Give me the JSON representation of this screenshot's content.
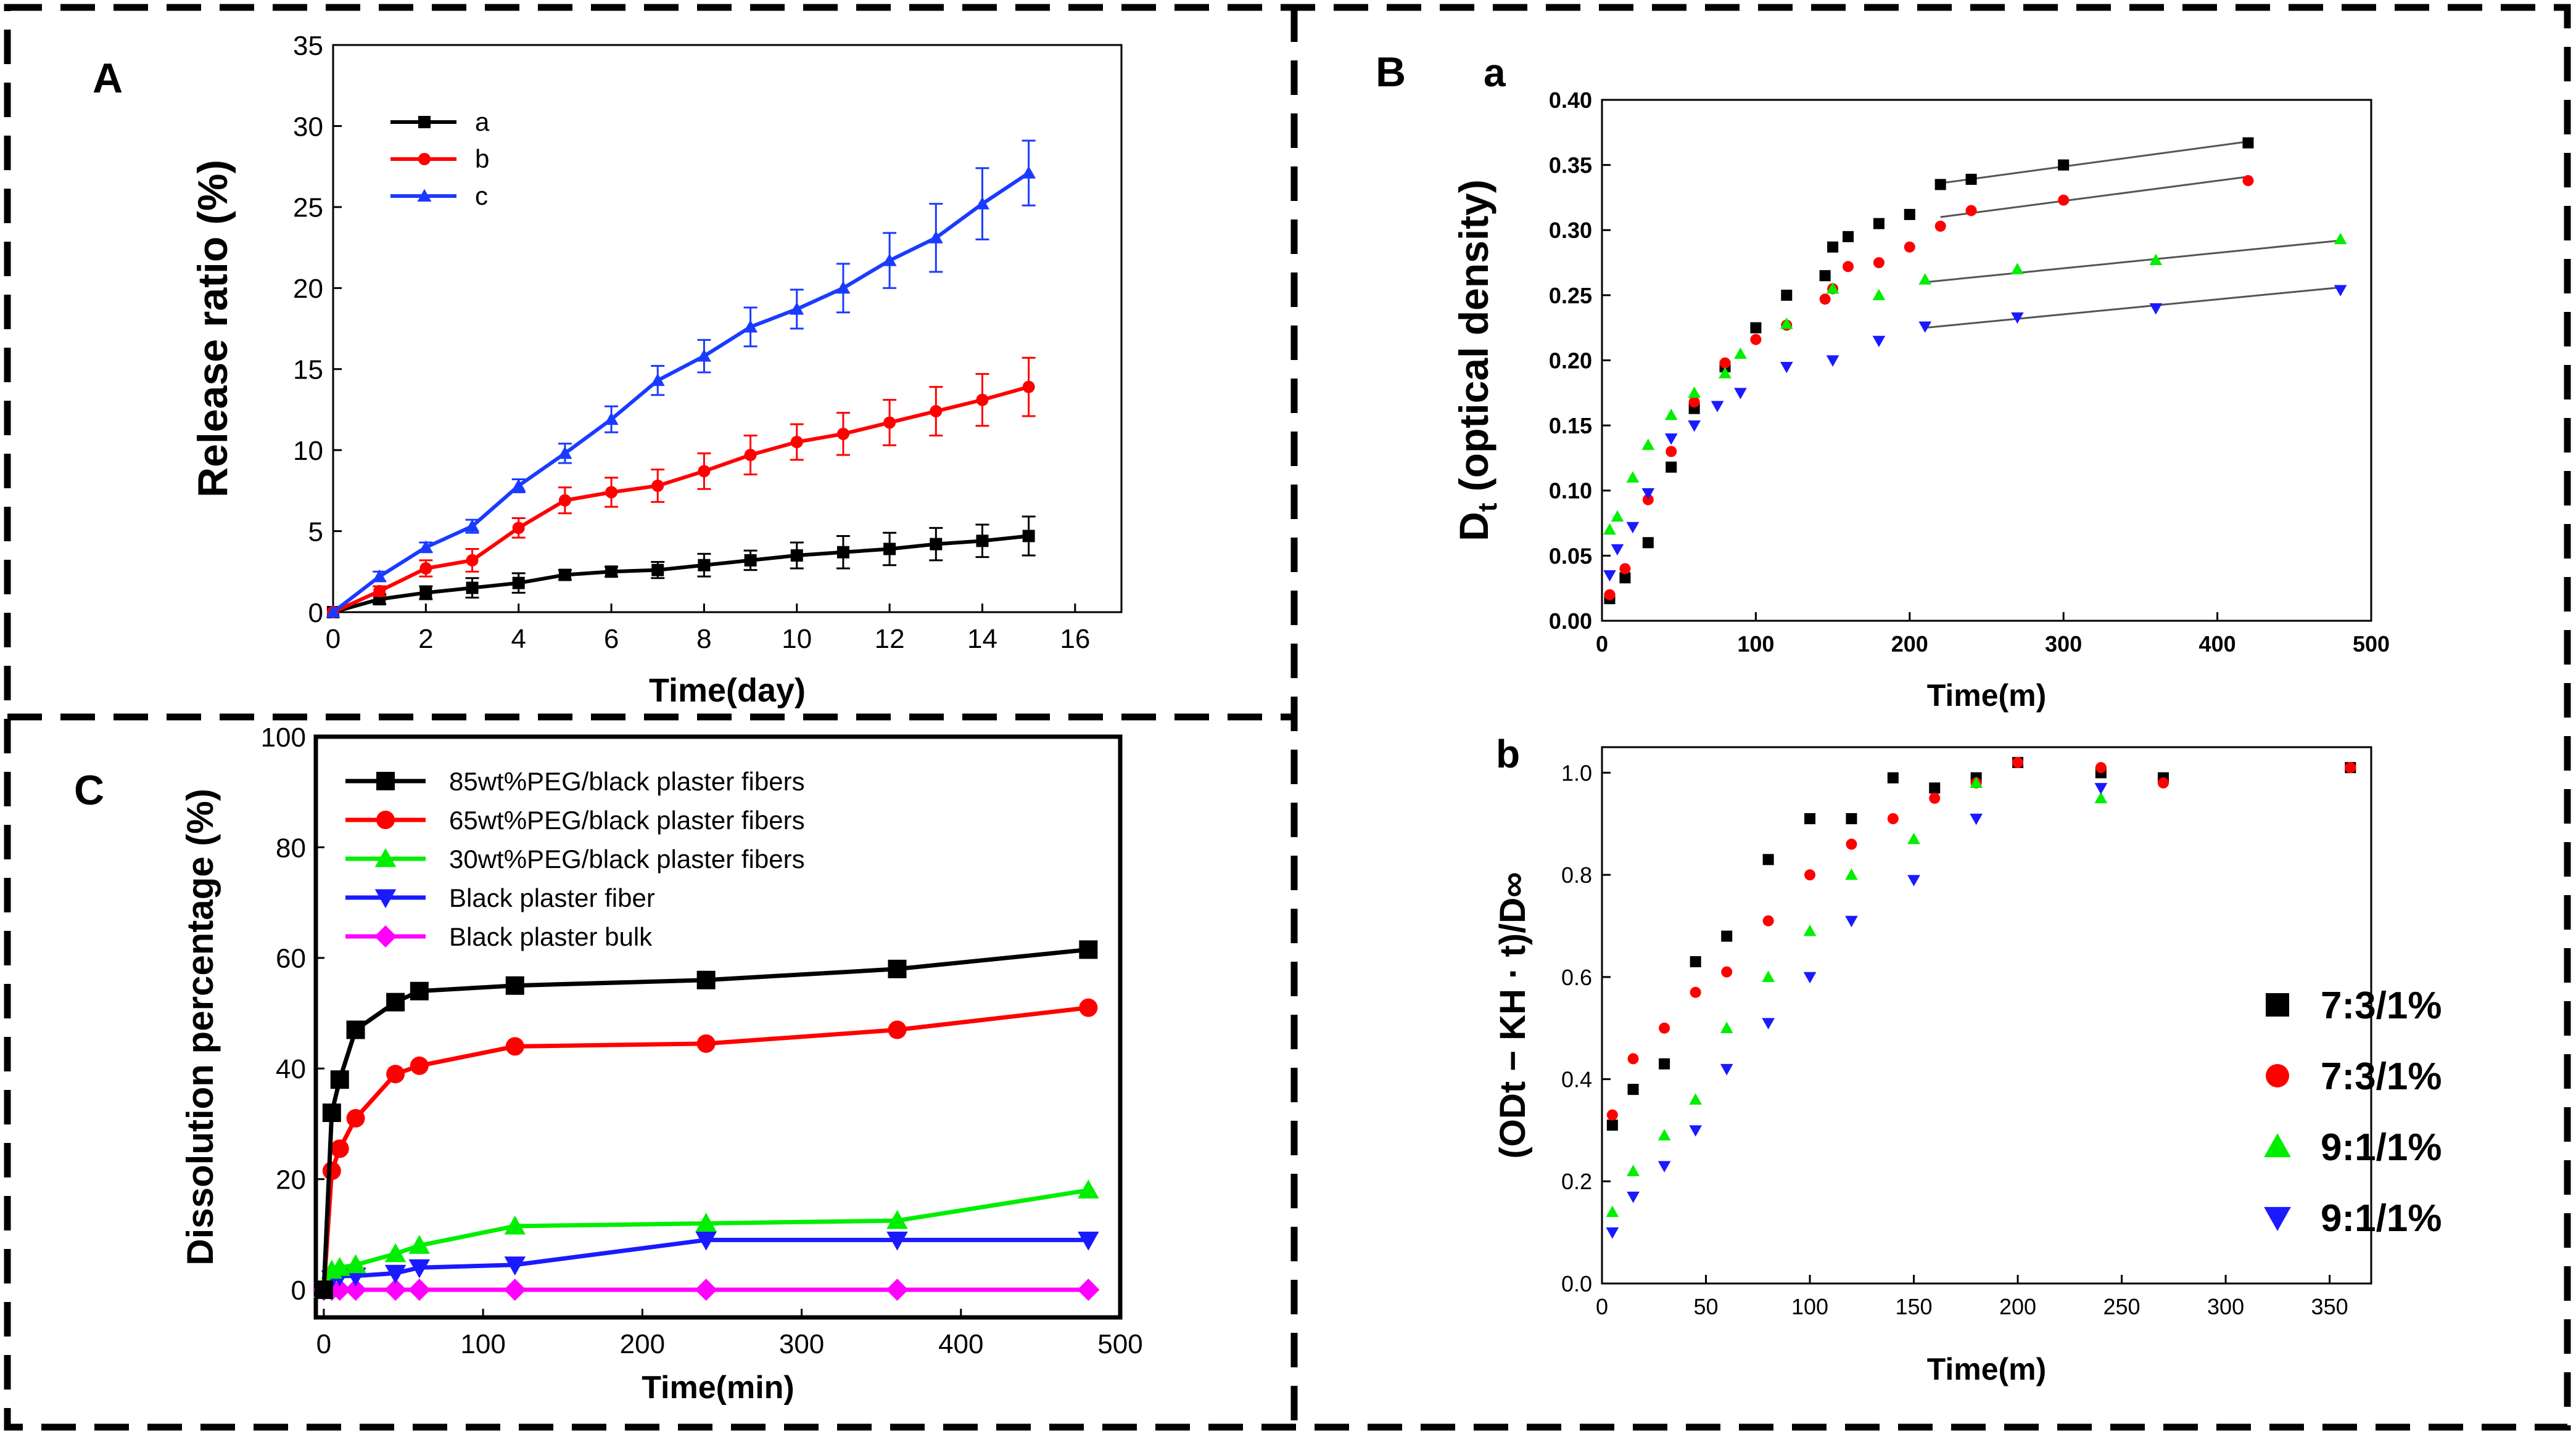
{
  "panels": {
    "A": "A",
    "B": "B",
    "C": "C",
    "Ba": "a",
    "Bb": "b"
  },
  "chart_data": [
    {
      "id": "A",
      "type": "line",
      "xlabel": "Time(day)",
      "ylabel": "Release ratio (%)",
      "xlim": [
        0,
        17
      ],
      "ylim": [
        0,
        35
      ],
      "xticks": [
        0,
        2,
        4,
        6,
        8,
        10,
        12,
        14,
        16
      ],
      "yticks": [
        0,
        5,
        10,
        15,
        20,
        25,
        30,
        35
      ],
      "legend": "top-left",
      "x": [
        0,
        1,
        2,
        3,
        4,
        5,
        6,
        7,
        8,
        9,
        10,
        11,
        12,
        13,
        14,
        15
      ],
      "series": [
        {
          "name": "a",
          "color": "#000000",
          "marker": "square",
          "values": [
            0,
            0.8,
            1.2,
            1.5,
            1.8,
            2.3,
            2.5,
            2.6,
            2.9,
            3.2,
            3.5,
            3.7,
            3.9,
            4.2,
            4.4,
            4.7
          ],
          "errors": [
            0,
            0.3,
            0.4,
            0.6,
            0.6,
            0.3,
            0.3,
            0.5,
            0.7,
            0.6,
            0.8,
            1.0,
            1.0,
            1.0,
            1.0,
            1.2
          ]
        },
        {
          "name": "b",
          "color": "#ff0000",
          "marker": "circle",
          "values": [
            0,
            1.3,
            2.7,
            3.2,
            5.2,
            6.9,
            7.4,
            7.8,
            8.7,
            9.7,
            10.5,
            11.0,
            11.7,
            12.4,
            13.1,
            13.9
          ],
          "errors": [
            0,
            0.3,
            0.5,
            0.7,
            0.6,
            0.8,
            0.9,
            1.0,
            1.1,
            1.2,
            1.1,
            1.3,
            1.4,
            1.5,
            1.6,
            1.8
          ]
        },
        {
          "name": "c",
          "color": "#1a3bff",
          "marker": "triangle-up",
          "values": [
            0,
            2.2,
            4.0,
            5.3,
            7.8,
            9.8,
            11.9,
            14.3,
            15.8,
            17.6,
            18.7,
            20.0,
            21.7,
            23.1,
            25.2,
            27.1
          ],
          "errors": [
            0,
            0.3,
            0.3,
            0.4,
            0.4,
            0.6,
            0.8,
            0.9,
            1.0,
            1.2,
            1.2,
            1.5,
            1.7,
            2.1,
            2.2,
            2.0
          ]
        }
      ]
    },
    {
      "id": "Ba",
      "type": "scatter",
      "xlabel": "Time(m)",
      "ylabel": "Dt (optical density)",
      "ylabel_main": "D",
      "ylabel_sub": "t",
      "ylabel_rest": " (optical density)",
      "xlim": [
        0,
        500
      ],
      "ylim": [
        0,
        0.4
      ],
      "xticks": [
        0,
        100,
        200,
        300,
        400,
        500
      ],
      "yticks": [
        "0.00",
        "0.05",
        "0.10",
        "0.15",
        "0.20",
        "0.25",
        "0.30",
        "0.35",
        "0.40"
      ],
      "series": [
        {
          "name": "7:3/1%",
          "color": "#000000",
          "marker": "square",
          "x": [
            5,
            15,
            30,
            45,
            60,
            80,
            100,
            120,
            145,
            150,
            160,
            180,
            200,
            220,
            240,
            300,
            420
          ],
          "y": [
            0.017,
            0.033,
            0.06,
            0.118,
            0.163,
            0.195,
            0.225,
            0.25,
            0.265,
            0.287,
            0.295,
            0.305,
            0.312,
            0.335,
            0.339,
            0.35,
            0.367
          ],
          "fit": [
            220,
            0.336,
            420,
            0.368
          ]
        },
        {
          "name": "7:3/1%",
          "color": "#ff0000",
          "marker": "circle",
          "x": [
            5,
            15,
            30,
            45,
            60,
            80,
            100,
            120,
            145,
            150,
            160,
            180,
            200,
            220,
            240,
            300,
            420
          ],
          "y": [
            0.02,
            0.04,
            0.093,
            0.13,
            0.168,
            0.198,
            0.216,
            0.227,
            0.247,
            0.255,
            0.272,
            0.275,
            0.287,
            0.303,
            0.315,
            0.323,
            0.338
          ],
          "fit": [
            220,
            0.31,
            420,
            0.341
          ]
        },
        {
          "name": "9:1/1%",
          "color": "#00ee00",
          "marker": "triangle-up",
          "x": [
            5,
            10,
            20,
            30,
            45,
            60,
            80,
            90,
            120,
            150,
            180,
            210,
            270,
            360,
            480
          ],
          "y": [
            0.07,
            0.08,
            0.11,
            0.135,
            0.158,
            0.175,
            0.19,
            0.205,
            0.228,
            0.255,
            0.25,
            0.262,
            0.27,
            0.277,
            0.293
          ],
          "fit": [
            210,
            0.26,
            480,
            0.292
          ]
        },
        {
          "name": "9:1/1%",
          "color": "#1a1aff",
          "marker": "triangle-down",
          "x": [
            5,
            10,
            20,
            30,
            45,
            60,
            75,
            90,
            120,
            150,
            180,
            210,
            270,
            360,
            480
          ],
          "y": [
            0.035,
            0.055,
            0.072,
            0.098,
            0.14,
            0.15,
            0.165,
            0.175,
            0.195,
            0.2,
            0.215,
            0.226,
            0.233,
            0.24,
            0.254
          ],
          "fit": [
            210,
            0.225,
            480,
            0.256
          ]
        }
      ]
    },
    {
      "id": "Bb",
      "type": "scatter",
      "xlabel": "Time(m)",
      "ylabel": "(ODt − KH · t)/D∞",
      "xlim": [
        0,
        370
      ],
      "ylim": [
        0,
        1.05
      ],
      "xticks": [
        0,
        50,
        100,
        150,
        200,
        250,
        300,
        350
      ],
      "yticks": [
        "0.0",
        "0.2",
        "0.4",
        "0.6",
        "0.8",
        "1.0"
      ],
      "legend": "right",
      "series": [
        {
          "name": "7:3/1%",
          "color": "#000000",
          "marker": "square",
          "x": [
            5,
            15,
            30,
            45,
            60,
            80,
            100,
            120,
            140,
            160,
            180,
            200,
            240,
            270,
            360
          ],
          "y": [
            0.31,
            0.38,
            0.43,
            0.63,
            0.68,
            0.83,
            0.91,
            0.91,
            0.99,
            0.97,
            0.99,
            1.02,
            1.0,
            0.99,
            1.01
          ]
        },
        {
          "name": "7:3/1%",
          "color": "#ff0000",
          "marker": "circle",
          "x": [
            5,
            15,
            30,
            45,
            60,
            80,
            100,
            120,
            140,
            160,
            180,
            200,
            240,
            270,
            360
          ],
          "y": [
            0.33,
            0.44,
            0.5,
            0.57,
            0.61,
            0.71,
            0.8,
            0.86,
            0.91,
            0.95,
            0.98,
            1.02,
            1.01,
            0.98,
            1.01
          ]
        },
        {
          "name": "9:1/1%",
          "color": "#00ee00",
          "marker": "triangle-up",
          "x": [
            5,
            15,
            30,
            45,
            60,
            80,
            100,
            120,
            150,
            180,
            240
          ],
          "y": [
            0.14,
            0.22,
            0.29,
            0.36,
            0.5,
            0.6,
            0.69,
            0.8,
            0.87,
            0.98,
            0.95
          ]
        },
        {
          "name": "9:1/1%",
          "color": "#1a1aff",
          "marker": "triangle-down",
          "x": [
            5,
            15,
            30,
            45,
            60,
            80,
            100,
            120,
            150,
            180,
            240
          ],
          "y": [
            0.1,
            0.17,
            0.23,
            0.3,
            0.42,
            0.51,
            0.6,
            0.71,
            0.79,
            0.91,
            0.97
          ]
        }
      ]
    },
    {
      "id": "C",
      "type": "line",
      "xlabel": "Time(min)",
      "ylabel": "Dissolution percentage (%)",
      "xlim": [
        -5,
        500
      ],
      "ylim": [
        -5,
        100
      ],
      "xticks": [
        0,
        100,
        200,
        300,
        400,
        500
      ],
      "yticks": [
        0,
        20,
        40,
        60,
        80,
        100
      ],
      "legend": "top-left",
      "x": [
        0,
        5,
        10,
        20,
        45,
        60,
        120,
        240,
        360,
        480
      ],
      "series": [
        {
          "name": "85wt%PEG/black plaster fibers",
          "color": "#000000",
          "marker": "square",
          "values": [
            0,
            32,
            38,
            47,
            52,
            54,
            55,
            56,
            58,
            61.5
          ]
        },
        {
          "name": "65wt%PEG/black plaster fibers",
          "color": "#ff0000",
          "marker": "circle",
          "values": [
            0,
            21.5,
            25.5,
            31,
            39,
            40.5,
            44,
            44.5,
            47,
            51
          ]
        },
        {
          "name": "30wt%PEG/black plaster fibers",
          "color": "#00ee00",
          "marker": "triangle-up",
          "values": [
            0,
            3.5,
            4,
            4.5,
            6.5,
            8,
            11.5,
            12,
            12.5,
            18
          ]
        },
        {
          "name": "Black plaster fiber",
          "color": "#1a1aff",
          "marker": "triangle-down",
          "values": [
            0,
            2,
            2.5,
            2.5,
            3,
            4,
            4.5,
            9,
            9,
            9
          ]
        },
        {
          "name": "Black plaster bulk",
          "color": "#ff00ff",
          "marker": "diamond",
          "values": [
            0,
            0,
            0,
            0,
            0,
            0,
            0,
            0,
            0,
            0
          ]
        }
      ]
    }
  ]
}
